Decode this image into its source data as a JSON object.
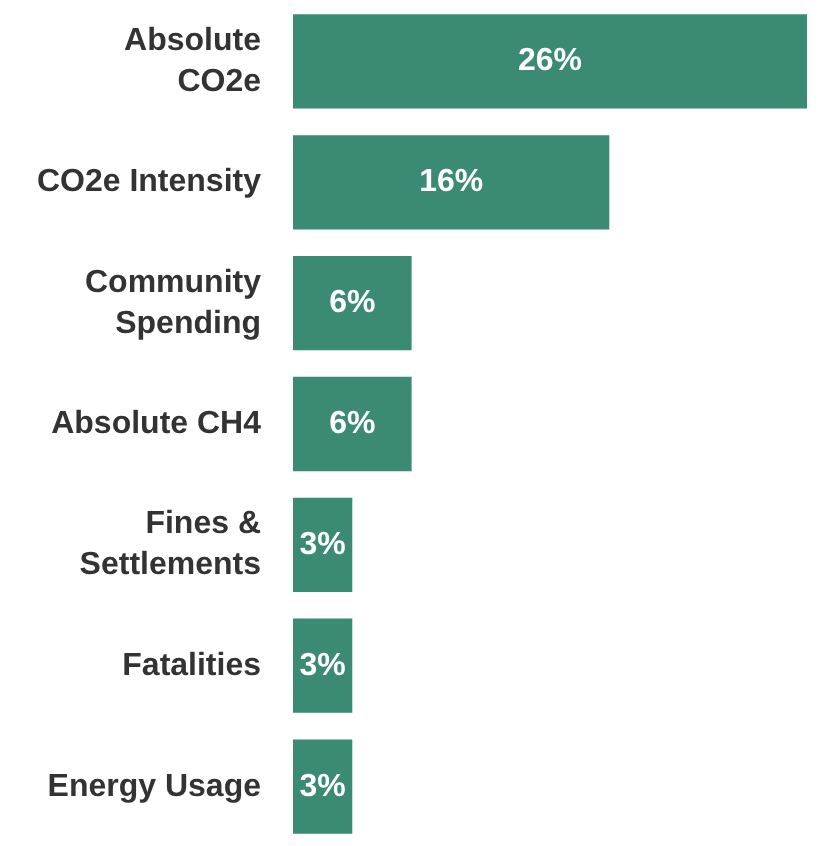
{
  "chart_data": {
    "type": "bar",
    "orientation": "horizontal",
    "categories": [
      "Absolute\nCO2e",
      "CO2e Intensity",
      "Community\nSpending",
      "Absolute CH4",
      "Fines &\nSettlements",
      "Fatalities",
      "Energy Usage"
    ],
    "values": [
      26,
      16,
      6,
      6,
      3,
      3,
      3
    ],
    "value_labels": [
      "26%",
      "16%",
      "6%",
      "6%",
      "3%",
      "3%",
      "3%"
    ],
    "color": "#3a8a74",
    "grid": false
  }
}
